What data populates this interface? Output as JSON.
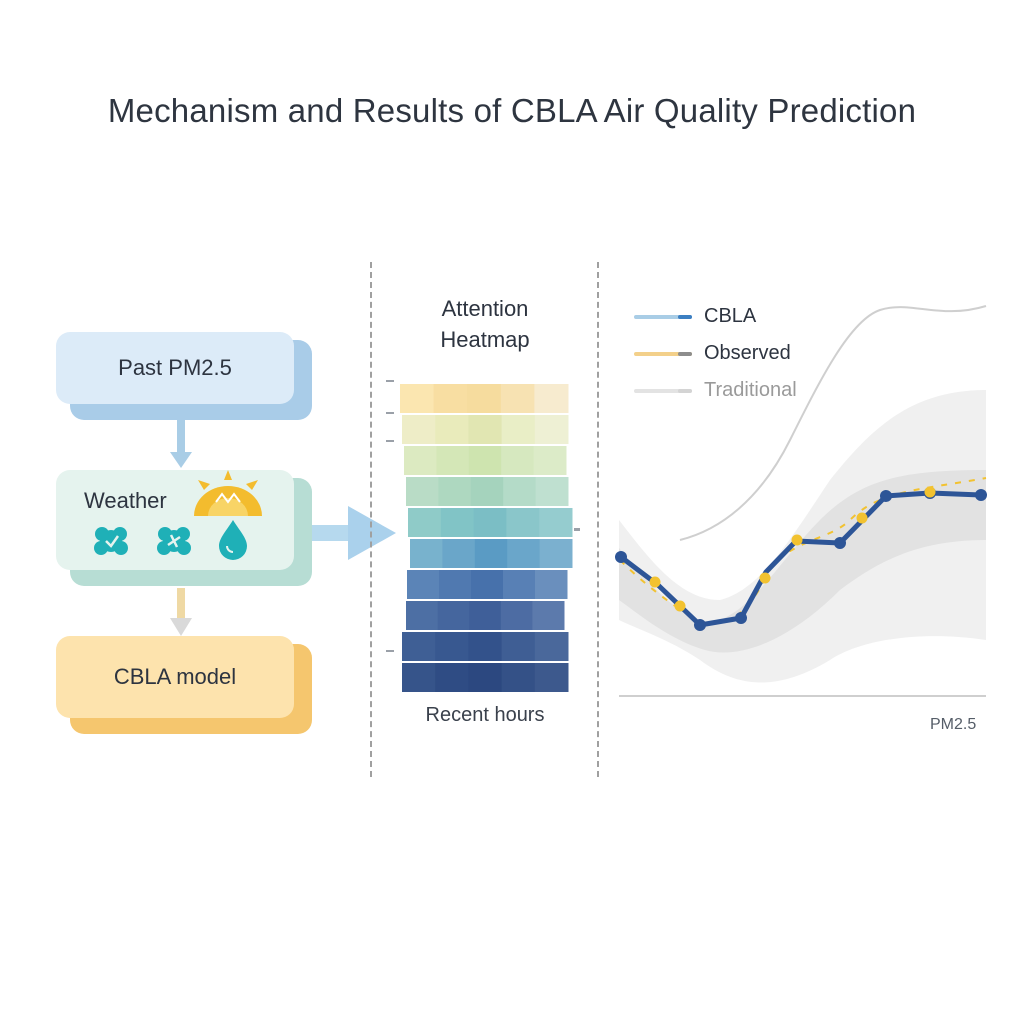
{
  "title": "Mechanism and Results of CBLA Air Quality Prediction",
  "flow": {
    "past_label": "Past PM2.5",
    "weather_label": "Weather",
    "model_label": "CBLA model",
    "weather_icons": [
      "sun-icon",
      "wind-icon",
      "wind-icon",
      "droplet-icon"
    ]
  },
  "heatmap": {
    "title_line1": "Attention",
    "title_line2": "Heatmap",
    "footer": "Recent hours",
    "rows": [
      [
        "#fbe6b0",
        "#f8dea2",
        "#f6dc9e",
        "#f7e2b2",
        "#f7ebcf"
      ],
      [
        "#eeedc7",
        "#e9ebbb",
        "#e1e6b2",
        "#e9eec6",
        "#eef0d4"
      ],
      [
        "#dceac1",
        "#d4e7b7",
        "#cee4af",
        "#d6e8bf",
        "#dcebc8"
      ],
      [
        "#b9dcc6",
        "#aed8c0",
        "#a5d3bd",
        "#b4dbc8",
        "#bfe0d0"
      ],
      [
        "#8fcbc8",
        "#81c4c6",
        "#7bbec5",
        "#8ac6ca",
        "#95cccf"
      ],
      [
        "#78b2cd",
        "#6aa6c9",
        "#5a9bc4",
        "#6aa6ca",
        "#7bb0cf"
      ],
      [
        "#5b84b7",
        "#5079b0",
        "#4771ab",
        "#5880b5",
        "#6a8fbd"
      ],
      [
        "#4d6fa4",
        "#45669e",
        "#3f5f99",
        "#4d6ca3",
        "#5c7aac"
      ],
      [
        "#3f5f95",
        "#385890",
        "#33528b",
        "#3f5e94",
        "#4a689b"
      ],
      [
        "#36548a",
        "#2f4c84",
        "#2c4880",
        "#345187",
        "#3d598d"
      ]
    ]
  },
  "legend": [
    {
      "label": "CBLA",
      "color": "#a9cde6",
      "tip": "#3c7fc2",
      "text_color": "#2d3440"
    },
    {
      "label": "Observed",
      "color": "#f3d08a",
      "tip": "#8d8d8d",
      "text_color": "#2d3440"
    },
    {
      "label": "Traditional",
      "color": "#e3e3e3",
      "tip": "#d4d4d4",
      "text_color": "#9a9a9a"
    }
  ],
  "chart": {
    "x_axis_label": "PM2.5",
    "cbla_color": "#2d5597",
    "observed_color": "#f2c230",
    "traditional_color": "#cfcfcf"
  }
}
